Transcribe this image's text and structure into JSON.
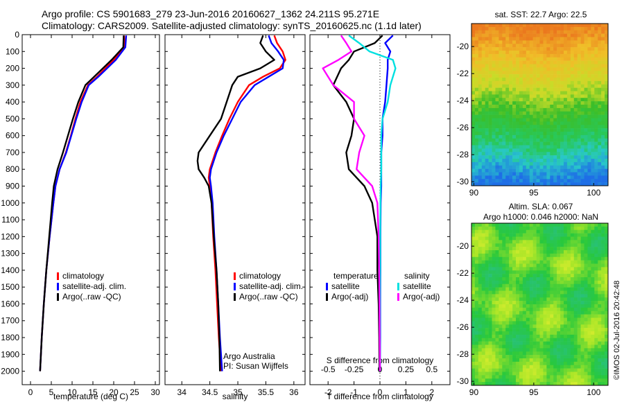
{
  "header": {
    "line1": "Argo profile: CS 5901683_279 23-Jun-2016 20160627_1362 24.211S 95.271E",
    "line2": "Climatology: CARS2009. Satellite-adjusted climatology: synTS_20160625.nc (1.1d later)"
  },
  "colors": {
    "climatology": "#ff0000",
    "satellite": "#0000ff",
    "argo": "#000000",
    "s_satellite": "#00e0e0",
    "s_argo": "#ff00ff",
    "zero_line": "#000000"
  },
  "chart_data": [
    {
      "type": "line",
      "panel": "temperature",
      "xlabel": "temperature (deg C)",
      "ylabel": "",
      "xlim": [
        -2,
        31
      ],
      "ylim": [
        2080,
        0
      ],
      "xticks": [
        "0",
        "5",
        "10",
        "15",
        "20",
        "25",
        "30"
      ],
      "yticks": [
        "0",
        "100",
        "200",
        "300",
        "400",
        "500",
        "600",
        "700",
        "800",
        "900",
        "1000",
        "1100",
        "1200",
        "1300",
        "1400",
        "1500",
        "1600",
        "1700",
        "1800",
        "1900",
        "2000"
      ],
      "legend": [
        "climatology",
        "satellite-adj. clim.",
        "Argo(..raw -QC)"
      ],
      "depth": [
        5,
        75,
        150,
        250,
        300,
        400,
        500,
        600,
        700,
        800,
        900,
        1000,
        1200,
        1400,
        1600,
        1800,
        2000
      ],
      "series": [
        {
          "name": "climatology",
          "values": [
            22.5,
            22.6,
            20,
            16,
            13.8,
            12,
            10.8,
            9.7,
            8.5,
            7.0,
            6.0,
            5.5,
            4.6,
            3.8,
            3.2,
            2.7,
            2.3
          ]
        },
        {
          "name": "satellite-adj. clim.",
          "values": [
            23.0,
            22.8,
            20.5,
            16.3,
            14.0,
            12.3,
            11.0,
            9.8,
            8.6,
            7.0,
            6.0,
            5.5,
            4.6,
            3.8,
            3.2,
            2.7,
            2.3
          ]
        },
        {
          "name": "Argo(..raw -QC)",
          "values": [
            22.4,
            22.3,
            19.5,
            15.3,
            13.2,
            11.5,
            10.2,
            9.0,
            7.8,
            6.5,
            5.6,
            5.2,
            4.5,
            3.8,
            3.2,
            2.7,
            2.3
          ]
        }
      ]
    },
    {
      "type": "line",
      "panel": "salinity",
      "xlabel": "salinity",
      "xlim": [
        33.7,
        36.2
      ],
      "ylim": [
        2080,
        0
      ],
      "xticks": [
        "34",
        "34.5",
        "35",
        "35.5",
        "36"
      ],
      "legend": [
        "climatology",
        "satellite-adj. clim.",
        "Argo(..raw -QC)"
      ],
      "annotations": [
        "Argo Australia",
        "PI: Susan Wijffels"
      ],
      "depth": [
        5,
        50,
        100,
        150,
        200,
        250,
        300,
        400,
        500,
        600,
        700,
        750,
        800,
        850,
        900,
        1000,
        1200,
        1400,
        1600,
        1800,
        2000
      ],
      "series": [
        {
          "name": "climatology",
          "values": [
            35.65,
            35.7,
            35.8,
            35.85,
            35.75,
            35.45,
            35.2,
            35.0,
            34.85,
            34.72,
            34.6,
            34.55,
            34.5,
            34.48,
            34.5,
            34.53,
            34.56,
            34.6,
            34.63,
            34.66,
            34.7
          ]
        },
        {
          "name": "satellite-adj. clim.",
          "values": [
            35.55,
            35.6,
            35.72,
            35.82,
            35.8,
            35.55,
            35.3,
            35.05,
            34.9,
            34.75,
            34.62,
            34.57,
            34.52,
            34.5,
            34.52,
            34.55,
            34.58,
            34.62,
            34.65,
            34.68,
            34.72
          ]
        },
        {
          "name": "Argo(..raw -QC)",
          "values": [
            35.45,
            35.4,
            35.5,
            35.65,
            35.4,
            35.0,
            34.9,
            34.8,
            34.7,
            34.5,
            34.3,
            34.28,
            34.3,
            34.4,
            34.48,
            34.53,
            34.57,
            34.62,
            34.65,
            34.67,
            34.68
          ]
        }
      ]
    },
    {
      "type": "line",
      "panel": "difference",
      "xlabel": "T difference from climatology",
      "x2label": "S difference from climatology",
      "xlim": [
        -2.7,
        2.7
      ],
      "ylim": [
        2080,
        0
      ],
      "xticks": [
        "-2",
        "-1",
        "0",
        "1",
        "2"
      ],
      "x2ticks": [
        "-0.5",
        "-0.25",
        "0",
        "0.25",
        "0.5"
      ],
      "legend_titles": [
        "temperature",
        "salinity"
      ],
      "legend": [
        "satellite",
        "Argo(-adj)",
        "satellite",
        "Argo(-adj)"
      ],
      "depth": [
        5,
        50,
        100,
        150,
        200,
        300,
        400,
        500,
        600,
        700,
        800,
        900,
        1000,
        1200,
        1400,
        1600,
        1800,
        2000
      ],
      "series": [
        {
          "name": "satellite",
          "group": "temperature",
          "values": [
            0.5,
            0.2,
            0.4,
            0.3,
            0.3,
            0.25,
            0.2,
            0.1,
            0.1,
            0.05,
            0.05,
            0.05,
            0.03,
            0.02,
            0.02,
            0.01,
            0.01,
            0.0
          ]
        },
        {
          "name": "Argo(-adj)",
          "group": "temperature",
          "values": [
            0.1,
            -0.2,
            -1.0,
            -1.2,
            -1.5,
            -1.8,
            -1.3,
            -1.0,
            -1.1,
            -1.3,
            -1.2,
            -0.6,
            -0.3,
            -0.1,
            -0.1,
            -0.05,
            -0.03,
            -0.02
          ]
        },
        {
          "name": "satellite",
          "group": "salinity",
          "values": [
            -1.2,
            -0.8,
            -0.4,
            0.5,
            0.6,
            0.4,
            0.3,
            0.1,
            0.05,
            0.05,
            0.05,
            0.03,
            0.02,
            0.01,
            0.01,
            0.0,
            0.0,
            0.0
          ]
        },
        {
          "name": "Argo(-adj)",
          "group": "salinity",
          "values": [
            -1.5,
            -1.3,
            -1.1,
            -1.6,
            -2.2,
            -1.8,
            -1.0,
            -1.0,
            -0.6,
            -0.8,
            -0.9,
            -0.3,
            -0.1,
            -0.05,
            -0.03,
            -0.02,
            -0.01,
            0.0
          ]
        }
      ]
    },
    {
      "type": "heatmap",
      "panel": "sst_map",
      "title": "sat. SST: 22.7 Argo: 22.5",
      "xticks": [
        "90",
        "95",
        "100"
      ],
      "yticks": [
        "-20",
        "-22",
        "-24",
        "-26",
        "-28",
        "-30"
      ],
      "xlim": [
        89.8,
        101.2
      ],
      "ylim": [
        -30.3,
        -18.3
      ],
      "values_description_bands": [
        "orange north",
        "yellow",
        "green",
        "cyan",
        "blue south"
      ]
    },
    {
      "type": "heatmap",
      "panel": "sla_map",
      "title": "Altim. SLA: 0.067",
      "subtitle": "Argo h1000: 0.046 h2000: NaN",
      "xticks": [
        "90",
        "95",
        "100"
      ],
      "yticks": [
        "-20",
        "-22",
        "-24",
        "-26",
        "-28",
        "-30"
      ],
      "xlim": [
        89.8,
        101.2
      ],
      "ylim": [
        -30.3,
        -18.3
      ]
    }
  ],
  "footer": {
    "credit": "©IMOS 02-Jul-2016 20:42:48"
  }
}
